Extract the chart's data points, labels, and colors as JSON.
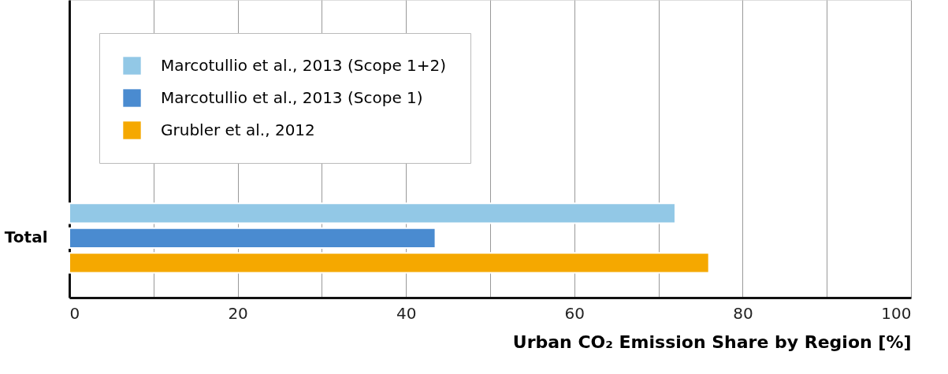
{
  "chart_data": {
    "type": "bar",
    "orientation": "horizontal",
    "xlabel": "Urban CO₂ Emission Share by Region [%]",
    "categories": [
      "Total"
    ],
    "series": [
      {
        "name": "Marcotullio et al., 2013 (Scope 1+2)",
        "color": "#92c8e6",
        "values": [
          72
        ]
      },
      {
        "name": "Marcotullio et al., 2013 (Scope 1)",
        "color": "#4a8bd0",
        "values": [
          43.5
        ]
      },
      {
        "name": "Grubler et al., 2012",
        "color": "#f5a800",
        "values": [
          76
        ]
      }
    ],
    "xlim": [
      0,
      100
    ],
    "xticks": [
      0,
      {
        "value": 10,
        "label": null
      },
      20,
      {
        "value": 30,
        "label": null
      },
      40,
      {
        "value": 50,
        "label": null
      },
      60,
      {
        "value": 70,
        "label": null
      },
      80,
      {
        "value": 90,
        "label": null
      },
      100
    ],
    "grid": "x",
    "legend": "top left"
  }
}
